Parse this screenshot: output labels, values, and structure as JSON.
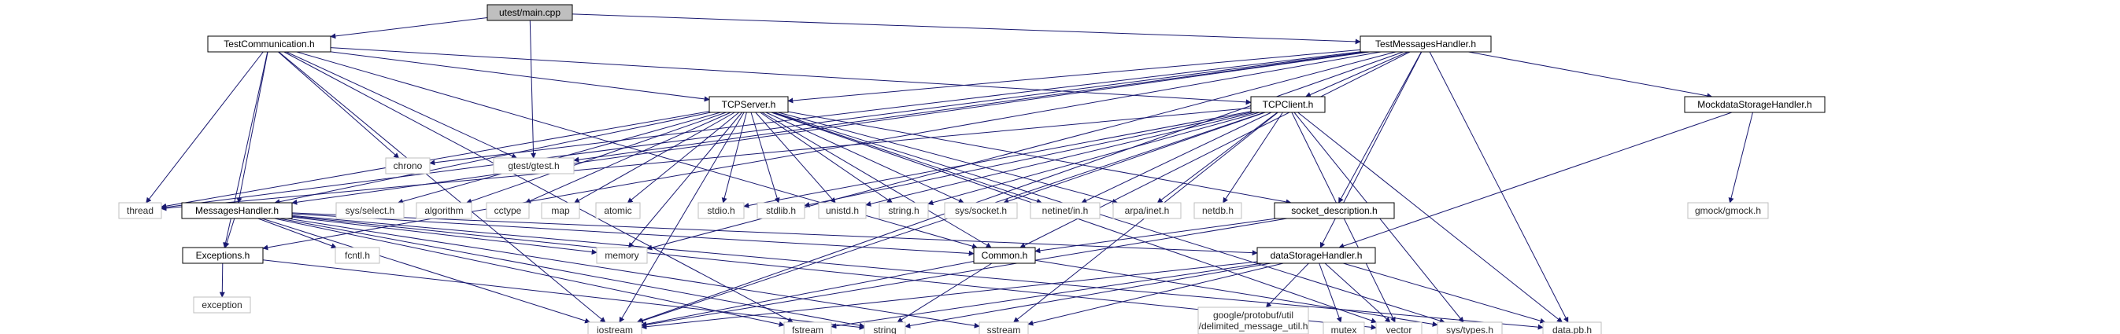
{
  "colors": {
    "edge": "#191970",
    "root_fill": "#bfbfbf",
    "node_border": "#000000",
    "ext_border": "#bfbfbf"
  },
  "nodes": [
    {
      "id": "main",
      "label": "utest/main.cpp",
      "kind": "root"
    },
    {
      "id": "testcomm",
      "label": "TestCommunication.h",
      "kind": "local"
    },
    {
      "id": "testmsg",
      "label": "TestMessagesHandler.h",
      "kind": "local"
    },
    {
      "id": "tcpserver",
      "label": "TCPServer.h",
      "kind": "local"
    },
    {
      "id": "tcpclient",
      "label": "TCPClient.h",
      "kind": "local"
    },
    {
      "id": "mockdata",
      "label": "MockdataStorageHandler.h",
      "kind": "local"
    },
    {
      "id": "chrono",
      "label": "chrono",
      "kind": "ext"
    },
    {
      "id": "gtest",
      "label": "gtest/gtest.h",
      "kind": "ext"
    },
    {
      "id": "thread",
      "label": "thread",
      "kind": "ext"
    },
    {
      "id": "msghandler",
      "label": "MessagesHandler.h",
      "kind": "local"
    },
    {
      "id": "sysselect",
      "label": "sys/select.h",
      "kind": "ext"
    },
    {
      "id": "algorithm",
      "label": "algorithm",
      "kind": "ext"
    },
    {
      "id": "cctype",
      "label": "cctype",
      "kind": "ext"
    },
    {
      "id": "map",
      "label": "map",
      "kind": "ext"
    },
    {
      "id": "atomic",
      "label": "atomic",
      "kind": "ext"
    },
    {
      "id": "stdio",
      "label": "stdio.h",
      "kind": "ext"
    },
    {
      "id": "stdlib",
      "label": "stdlib.h",
      "kind": "ext"
    },
    {
      "id": "unistd",
      "label": "unistd.h",
      "kind": "ext"
    },
    {
      "id": "string_h",
      "label": "string.h",
      "kind": "ext"
    },
    {
      "id": "syssocket",
      "label": "sys/socket.h",
      "kind": "ext"
    },
    {
      "id": "netinet",
      "label": "netinet/in.h",
      "kind": "ext"
    },
    {
      "id": "arpainet",
      "label": "arpa/inet.h",
      "kind": "ext"
    },
    {
      "id": "netdb",
      "label": "netdb.h",
      "kind": "ext"
    },
    {
      "id": "socketdesc",
      "label": "socket_description.h",
      "kind": "local"
    },
    {
      "id": "gmock",
      "label": "gmock/gmock.h",
      "kind": "ext"
    },
    {
      "id": "exceptions",
      "label": "Exceptions.h",
      "kind": "local"
    },
    {
      "id": "fcntl",
      "label": "fcntl.h",
      "kind": "ext"
    },
    {
      "id": "memory",
      "label": "memory",
      "kind": "ext"
    },
    {
      "id": "common",
      "label": "Common.h",
      "kind": "local"
    },
    {
      "id": "datastorage",
      "label": "dataStorageHandler.h",
      "kind": "local"
    },
    {
      "id": "exception",
      "label": "exception",
      "kind": "ext"
    },
    {
      "id": "iostream",
      "label": "iostream",
      "kind": "ext"
    },
    {
      "id": "fstream",
      "label": "fstream",
      "kind": "ext"
    },
    {
      "id": "string",
      "label": "string",
      "kind": "ext"
    },
    {
      "id": "sstream",
      "label": "sstream",
      "kind": "ext"
    },
    {
      "id": "protobuf",
      "label": "google/protobuf/util\n/delimited_message_util.h",
      "kind": "ext"
    },
    {
      "id": "mutex",
      "label": "mutex",
      "kind": "ext"
    },
    {
      "id": "vector",
      "label": "vector",
      "kind": "ext"
    },
    {
      "id": "systypes",
      "label": "sys/types.h",
      "kind": "ext"
    },
    {
      "id": "datapb",
      "label": "data.pb.h",
      "kind": "ext"
    }
  ],
  "edges": [
    [
      "main",
      "testcomm"
    ],
    [
      "main",
      "testmsg"
    ],
    [
      "main",
      "gtest"
    ],
    [
      "testcomm",
      "tcpserver"
    ],
    [
      "testcomm",
      "tcpclient"
    ],
    [
      "testcomm",
      "chrono"
    ],
    [
      "testcomm",
      "gtest"
    ],
    [
      "testcomm",
      "thread"
    ],
    [
      "testcomm",
      "msghandler"
    ],
    [
      "testcomm",
      "exceptions"
    ],
    [
      "testcomm",
      "common"
    ],
    [
      "testcomm",
      "iostream"
    ],
    [
      "testcomm",
      "fstream"
    ],
    [
      "testmsg",
      "tcpserver"
    ],
    [
      "testmsg",
      "tcpclient"
    ],
    [
      "testmsg",
      "mockdata"
    ],
    [
      "testmsg",
      "chrono"
    ],
    [
      "testmsg",
      "gtest"
    ],
    [
      "testmsg",
      "thread"
    ],
    [
      "testmsg",
      "msghandler"
    ],
    [
      "testmsg",
      "socketdesc"
    ],
    [
      "testmsg",
      "exceptions"
    ],
    [
      "testmsg",
      "common"
    ],
    [
      "testmsg",
      "datastorage"
    ],
    [
      "testmsg",
      "datapb"
    ],
    [
      "testmsg",
      "memory"
    ],
    [
      "testmsg",
      "iostream"
    ],
    [
      "tcpserver",
      "thread"
    ],
    [
      "tcpserver",
      "msghandler"
    ],
    [
      "tcpserver",
      "sysselect"
    ],
    [
      "tcpserver",
      "algorithm"
    ],
    [
      "tcpserver",
      "cctype"
    ],
    [
      "tcpserver",
      "map"
    ],
    [
      "tcpserver",
      "atomic"
    ],
    [
      "tcpserver",
      "stdio"
    ],
    [
      "tcpserver",
      "stdlib"
    ],
    [
      "tcpserver",
      "unistd"
    ],
    [
      "tcpserver",
      "string_h"
    ],
    [
      "tcpserver",
      "syssocket"
    ],
    [
      "tcpserver",
      "netinet"
    ],
    [
      "tcpserver",
      "arpainet"
    ],
    [
      "tcpserver",
      "socketdesc"
    ],
    [
      "tcpserver",
      "memory"
    ],
    [
      "tcpserver",
      "common"
    ],
    [
      "tcpserver",
      "iostream"
    ],
    [
      "tcpserver",
      "vector"
    ],
    [
      "tcpserver",
      "systypes"
    ],
    [
      "tcpclient",
      "thread"
    ],
    [
      "tcpclient",
      "stdio"
    ],
    [
      "tcpclient",
      "stdlib"
    ],
    [
      "tcpclient",
      "unistd"
    ],
    [
      "tcpclient",
      "string_h"
    ],
    [
      "tcpclient",
      "syssocket"
    ],
    [
      "tcpclient",
      "netinet"
    ],
    [
      "tcpclient",
      "arpainet"
    ],
    [
      "tcpclient",
      "netdb"
    ],
    [
      "tcpclient",
      "iostream"
    ],
    [
      "tcpclient",
      "sstream"
    ],
    [
      "tcpclient",
      "vector"
    ],
    [
      "tcpclient",
      "systypes"
    ],
    [
      "tcpclient",
      "datapb"
    ],
    [
      "mockdata",
      "gmock"
    ],
    [
      "mockdata",
      "datastorage"
    ],
    [
      "msghandler",
      "exceptions"
    ],
    [
      "msghandler",
      "fcntl"
    ],
    [
      "msghandler",
      "memory"
    ],
    [
      "msghandler",
      "common"
    ],
    [
      "msghandler",
      "iostream"
    ],
    [
      "msghandler",
      "fstream"
    ],
    [
      "msghandler",
      "string"
    ],
    [
      "msghandler",
      "sstream"
    ],
    [
      "msghandler",
      "datastorage"
    ],
    [
      "msghandler",
      "vector"
    ],
    [
      "msghandler",
      "datapb"
    ],
    [
      "socketdesc",
      "common"
    ],
    [
      "socketdesc",
      "iostream"
    ],
    [
      "exceptions",
      "exception"
    ],
    [
      "exceptions",
      "string"
    ],
    [
      "common",
      "iostream"
    ],
    [
      "common",
      "string"
    ],
    [
      "common",
      "systypes"
    ],
    [
      "datastorage",
      "iostream"
    ],
    [
      "datastorage",
      "fstream"
    ],
    [
      "datastorage",
      "string"
    ],
    [
      "datastorage",
      "sstream"
    ],
    [
      "datastorage",
      "protobuf"
    ],
    [
      "datastorage",
      "mutex"
    ],
    [
      "datastorage",
      "vector"
    ],
    [
      "datastorage",
      "datapb"
    ]
  ]
}
